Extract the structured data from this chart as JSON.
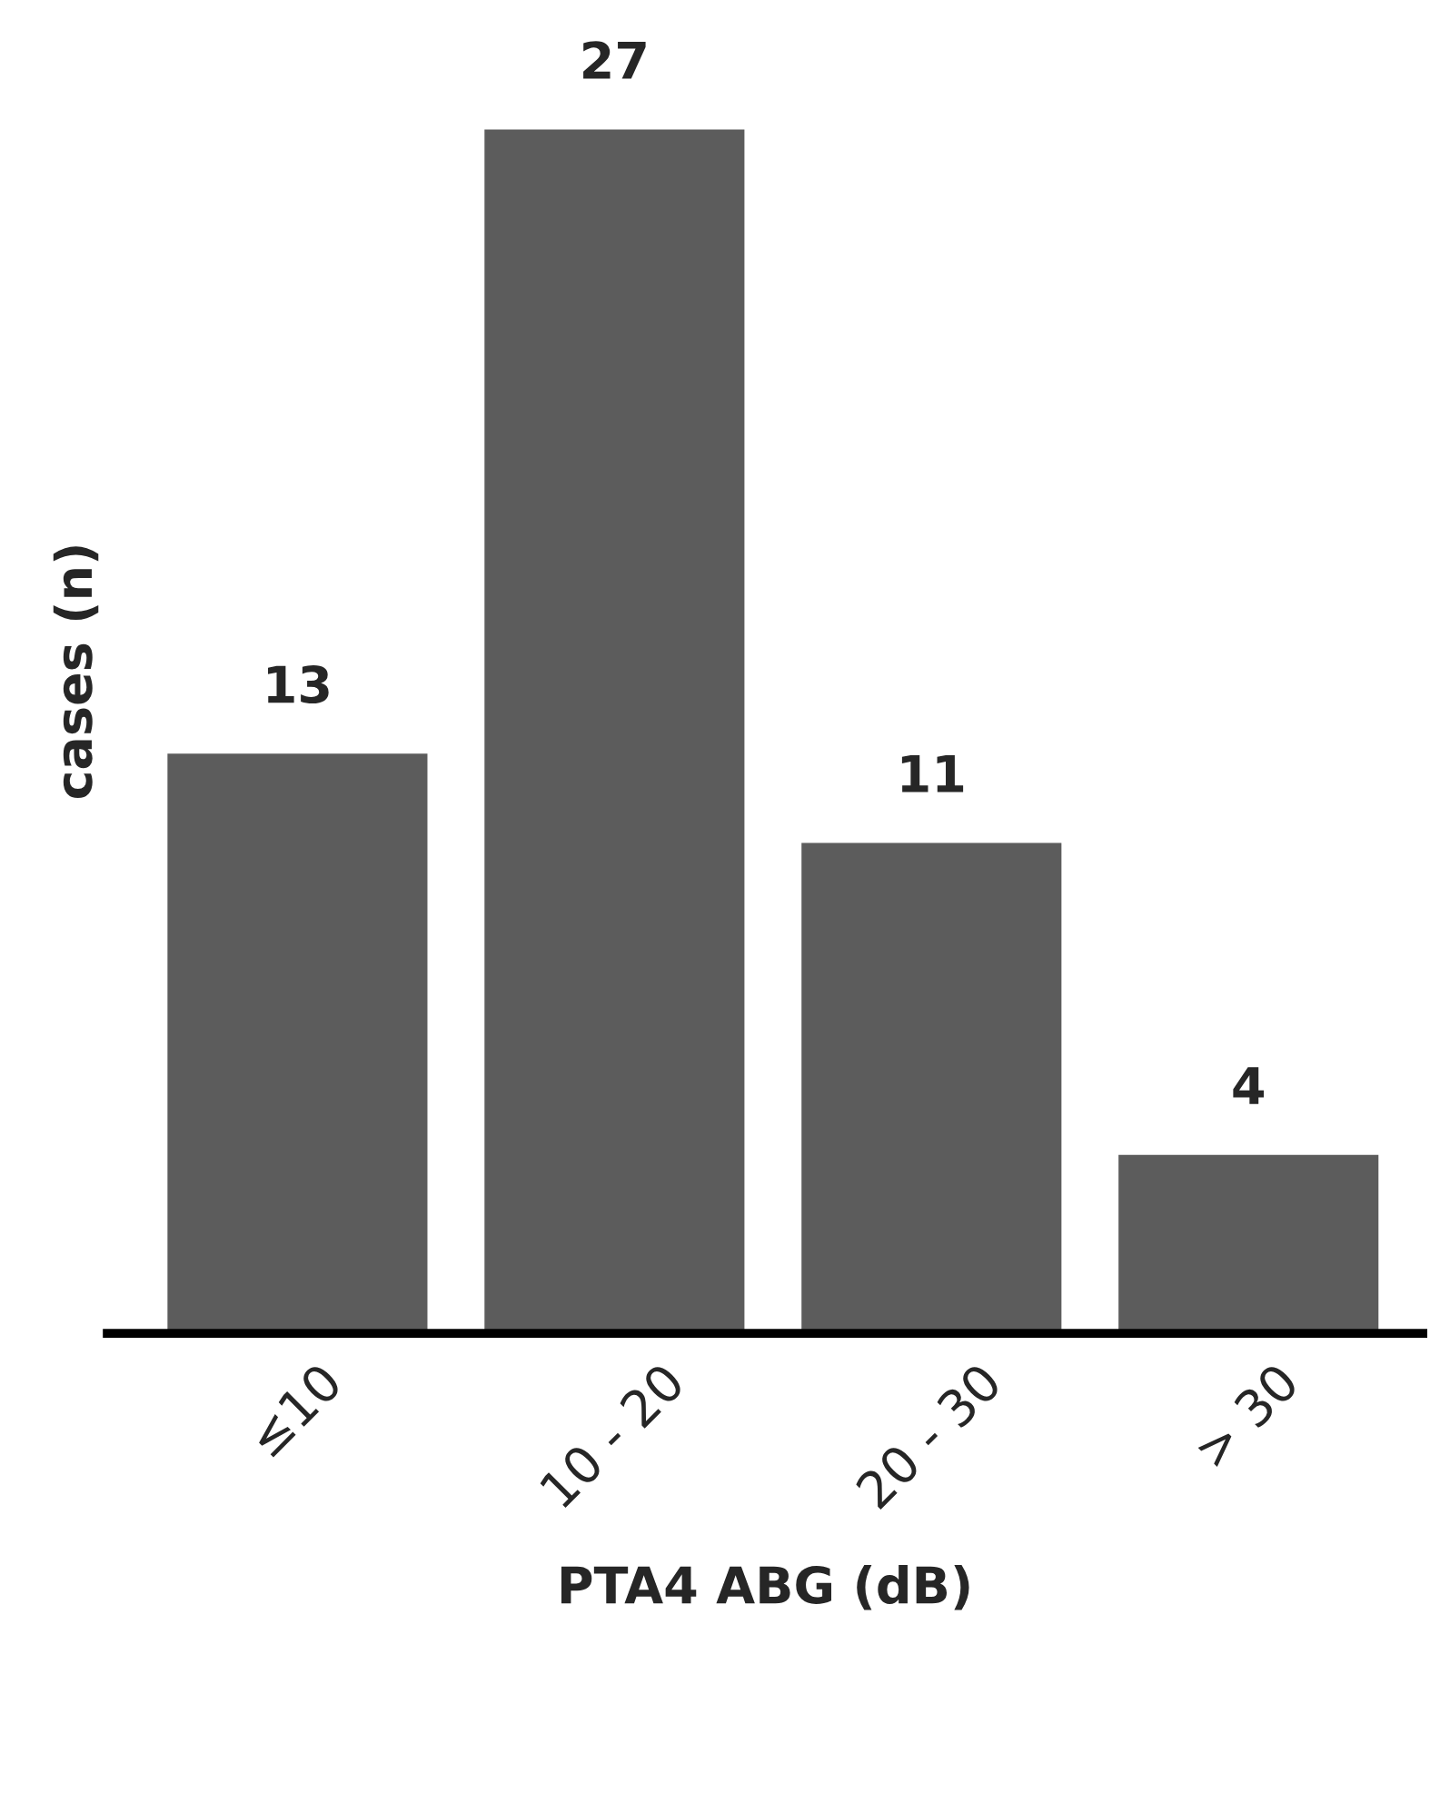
{
  "chart_data": {
    "type": "bar",
    "xlabel": "PTA4 ABG (dB)",
    "ylabel": "cases (n)",
    "categories": [
      "≤10",
      "10 - 20",
      "20 - 30",
      "> 30"
    ],
    "values": [
      13,
      27,
      11,
      4
    ],
    "color": "#5c5c5c",
    "data_labels": true,
    "tick_labels": "x",
    "grid": false
  }
}
